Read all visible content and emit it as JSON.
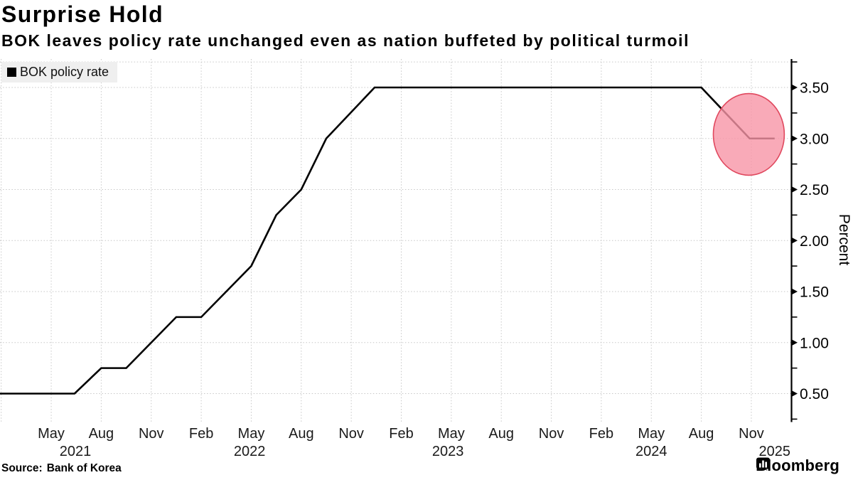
{
  "header": {
    "title": "Surprise Hold",
    "subtitle": "BOK leaves policy rate unchanged even as nation buffeted by political turmoil"
  },
  "legend": {
    "label": "BOK policy rate",
    "marker_icon": "black-square-icon"
  },
  "source": {
    "label": "Source:",
    "text": "Bank of Korea"
  },
  "branding": {
    "logo_text": "Bloomberg",
    "logo_icon": "bloomberg-chart-bubble-icon"
  },
  "colors": {
    "line": "#000000",
    "grid": "#c7c7c7",
    "axis": "#000000",
    "highlight_fill": "#f795a6",
    "highlight_stroke": "#e0485e",
    "legend_bg": "#efefef"
  },
  "chart_data": {
    "type": "line",
    "title": "Surprise Hold",
    "subtitle": "BOK leaves policy rate unchanged even as nation buffeted by political turmoil",
    "ylabel": "Percent",
    "xlabel": "",
    "x_unit": "months since 2021-02",
    "ylim": [
      0.25,
      3.75
    ],
    "grid": "dashed",
    "legend_position": "top-left",
    "series": [
      {
        "name": "BOK policy rate",
        "color": "#000000",
        "points": [
          [
            -0.1,
            0.5
          ],
          [
            4.4,
            0.5
          ],
          [
            6.0,
            0.75
          ],
          [
            7.5,
            0.75
          ],
          [
            10.5,
            1.25
          ],
          [
            12.0,
            1.25
          ],
          [
            15.0,
            1.75
          ],
          [
            16.5,
            2.25
          ],
          [
            18.0,
            2.5
          ],
          [
            19.5,
            3.0
          ],
          [
            22.4,
            3.5
          ],
          [
            42.0,
            3.5
          ],
          [
            44.9,
            3.0
          ],
          [
            46.4,
            3.0
          ]
        ]
      }
    ],
    "key_values": {
      "start_rate_2021": 0.5,
      "peak_rate_2023": 3.5,
      "current_rate_2025": 3.0
    },
    "x_grid_months": [
      0,
      3,
      6,
      9,
      12,
      15,
      18,
      21,
      24,
      27,
      30,
      33,
      36,
      39,
      42,
      45
    ],
    "x_ticks": [
      {
        "m": 3,
        "label": "May"
      },
      {
        "m": 6,
        "label": "Aug"
      },
      {
        "m": 9,
        "label": "Nov"
      },
      {
        "m": 12,
        "label": "Feb"
      },
      {
        "m": 15,
        "label": "May"
      },
      {
        "m": 18,
        "label": "Aug"
      },
      {
        "m": 21,
        "label": "Nov"
      },
      {
        "m": 24,
        "label": "Feb"
      },
      {
        "m": 27,
        "label": "May"
      },
      {
        "m": 30,
        "label": "Aug"
      },
      {
        "m": 33,
        "label": "Nov"
      },
      {
        "m": 36,
        "label": "Feb"
      },
      {
        "m": 39,
        "label": "May"
      },
      {
        "m": 42,
        "label": "Aug"
      },
      {
        "m": 45,
        "label": "Nov"
      }
    ],
    "x_years": [
      {
        "m": 4.45,
        "label": "2021"
      },
      {
        "m": 14.9,
        "label": "2022"
      },
      {
        "m": 26.8,
        "label": "2023"
      },
      {
        "m": 39.0,
        "label": "2024"
      },
      {
        "m": 46.4,
        "label": "2025"
      }
    ],
    "y_ticks": [
      {
        "v": 0.5,
        "label": "0.50"
      },
      {
        "v": 1.0,
        "label": "1.00"
      },
      {
        "v": 1.5,
        "label": "1.50"
      },
      {
        "v": 2.0,
        "label": "2.00"
      },
      {
        "v": 2.5,
        "label": "2.50"
      },
      {
        "v": 3.0,
        "label": "3.00"
      },
      {
        "v": 3.5,
        "label": "3.50"
      }
    ],
    "y_minor_ticks": [
      0.25,
      0.75,
      1.25,
      1.75,
      2.25,
      2.75,
      3.25,
      3.75
    ],
    "y_grid_values": [
      0.5,
      1.0,
      1.5,
      2.0,
      2.5,
      3.0,
      3.5,
      3.75
    ],
    "annotation": {
      "shape": "ellipse",
      "meaning": "highlight of surprise hold at 3.00%",
      "center": [
        44.85,
        3.04
      ],
      "rx_months": 2.13,
      "ry_value": 0.4
    }
  }
}
